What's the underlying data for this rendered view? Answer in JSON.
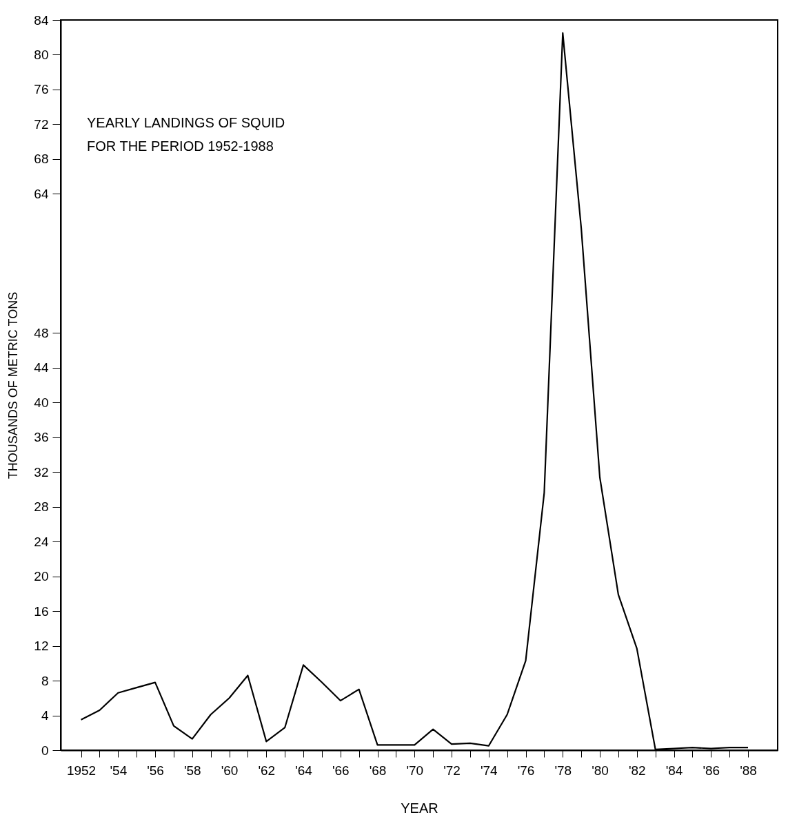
{
  "chart_data": {
    "type": "line",
    "title": "YEARLY LANDINGS OF SQUID\nFOR THE PERIOD  1952-1988",
    "xlabel": "YEAR",
    "ylabel": "THOUSANDS OF METRIC TONS",
    "x": [
      1952,
      1953,
      1954,
      1955,
      1956,
      1957,
      1958,
      1959,
      1960,
      1961,
      1962,
      1963,
      1964,
      1965,
      1966,
      1967,
      1968,
      1969,
      1970,
      1971,
      1972,
      1973,
      1974,
      1975,
      1976,
      1977,
      1978,
      1979,
      1980,
      1981,
      1982,
      1983,
      1984,
      1985,
      1986,
      1987,
      1988
    ],
    "series": [
      {
        "color": "#000000",
        "values": [
          3.5,
          4.6,
          6.6,
          7.2,
          7.8,
          2.8,
          1.3,
          4.1,
          6.0,
          8.6,
          1.0,
          2.6,
          9.8,
          7.8,
          5.7,
          7.0,
          0.6,
          0.6,
          0.6,
          2.4,
          0.7,
          0.8,
          0.5,
          4.1,
          10.3,
          29.6,
          82.5,
          60,
          31.4,
          17.9,
          11.7,
          0.1,
          0.2,
          0.3,
          0.2,
          0.3,
          0.3
        ]
      }
    ],
    "xlim": [
      1950.9,
      1989.6
    ],
    "ylim": [
      0,
      84
    ],
    "xticks": [
      1952,
      {
        "value": 1953,
        "label": null
      },
      {
        "value": 1954,
        "label": "'54"
      },
      {
        "value": 1955,
        "label": null
      },
      {
        "value": 1956,
        "label": "'56"
      },
      {
        "value": 1957,
        "label": null
      },
      {
        "value": 1958,
        "label": "'58"
      },
      {
        "value": 1959,
        "label": null
      },
      {
        "value": 1960,
        "label": "'60"
      },
      {
        "value": 1961,
        "label": null
      },
      {
        "value": 1962,
        "label": "'62"
      },
      {
        "value": 1963,
        "label": null
      },
      {
        "value": 1964,
        "label": "'64"
      },
      {
        "value": 1965,
        "label": null
      },
      {
        "value": 1966,
        "label": "'66"
      },
      {
        "value": 1967,
        "label": null
      },
      {
        "value": 1968,
        "label": "'68"
      },
      {
        "value": 1969,
        "label": null
      },
      {
        "value": 1970,
        "label": "'70"
      },
      {
        "value": 1971,
        "label": null
      },
      {
        "value": 1972,
        "label": "'72"
      },
      {
        "value": 1973,
        "label": null
      },
      {
        "value": 1974,
        "label": "'74"
      },
      {
        "value": 1975,
        "label": null
      },
      {
        "value": 1976,
        "label": "'76"
      },
      {
        "value": 1977,
        "label": null
      },
      {
        "value": 1978,
        "label": "'78"
      },
      {
        "value": 1979,
        "label": null
      },
      {
        "value": 1980,
        "label": "'80"
      },
      {
        "value": 1981,
        "label": null
      },
      {
        "value": 1982,
        "label": "'82"
      },
      {
        "value": 1983,
        "label": null
      },
      {
        "value": 1984,
        "label": "'84"
      },
      {
        "value": 1985,
        "label": null
      },
      {
        "value": 1986,
        "label": "'86"
      },
      {
        "value": 1987,
        "label": null
      },
      {
        "value": 1988,
        "label": "'88"
      }
    ],
    "yticks": [
      0,
      4,
      8,
      12,
      16,
      20,
      24,
      28,
      32,
      36,
      40,
      44,
      48,
      64,
      68,
      72,
      76,
      80,
      84
    ],
    "grid": false,
    "marker": "none",
    "line_style": "solid",
    "legend": false
  }
}
